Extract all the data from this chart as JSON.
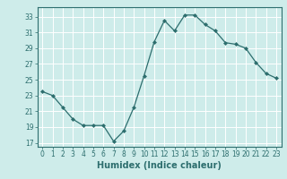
{
  "x": [
    0,
    1,
    2,
    3,
    4,
    5,
    6,
    7,
    8,
    9,
    10,
    11,
    12,
    13,
    14,
    15,
    16,
    17,
    18,
    19,
    20,
    21,
    22,
    23
  ],
  "y": [
    23.5,
    23.0,
    21.5,
    20.0,
    19.2,
    19.2,
    19.2,
    17.2,
    18.5,
    21.5,
    25.5,
    29.8,
    32.5,
    31.2,
    33.2,
    33.2,
    32.0,
    31.2,
    29.7,
    29.5,
    29.0,
    27.2,
    25.8,
    25.2
  ],
  "line_color": "#2d6e6e",
  "marker": "D",
  "marker_size": 2.0,
  "bg_color": "#ceecea",
  "grid_color": "#ffffff",
  "tick_color": "#2d6e6e",
  "xlabel": "Humidex (Indice chaleur)",
  "xlabel_fontsize": 7,
  "ylabel_ticks": [
    17,
    19,
    21,
    23,
    25,
    27,
    29,
    31,
    33
  ],
  "xlim": [
    -0.5,
    23.5
  ],
  "ylim": [
    16.5,
    34.2
  ],
  "xticks": [
    0,
    1,
    2,
    3,
    4,
    5,
    6,
    7,
    8,
    9,
    10,
    11,
    12,
    13,
    14,
    15,
    16,
    17,
    18,
    19,
    20,
    21,
    22,
    23
  ],
  "tick_fontsize": 5.5,
  "linewidth": 0.9
}
